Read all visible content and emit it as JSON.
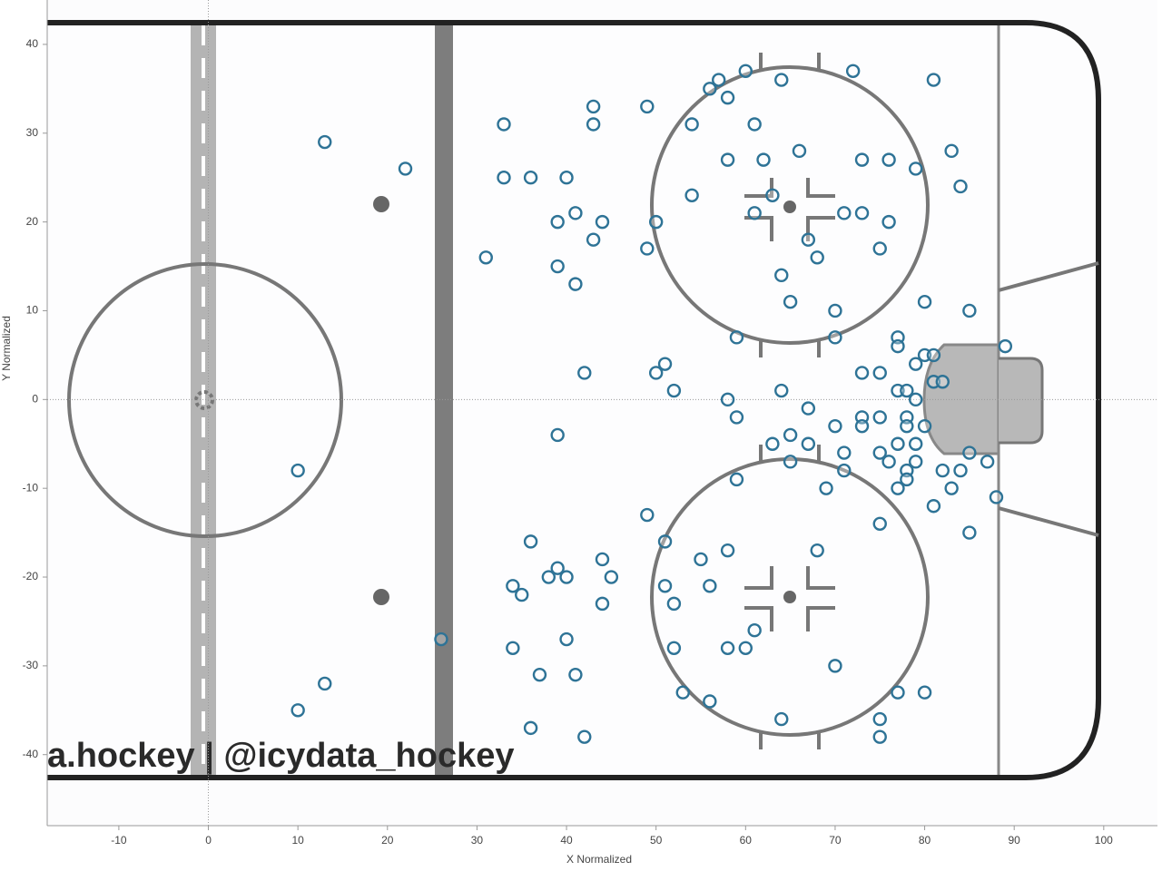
{
  "chart_data": {
    "type": "scatter",
    "xlabel": "X Normalized",
    "ylabel": "Y Normalized",
    "watermark": "a.hockey | @icydata_hockey",
    "color": "#2e7396",
    "xlim": [
      -18,
      106
    ],
    "ylim": [
      -48,
      45
    ],
    "xticks": [
      -10,
      0,
      10,
      20,
      30,
      40,
      50,
      60,
      70,
      80,
      90,
      100
    ],
    "yticks": [
      -40,
      -30,
      -20,
      -10,
      0,
      10,
      20,
      30,
      40
    ],
    "x": [
      13,
      22,
      10,
      26,
      13,
      10,
      31,
      33,
      33,
      36,
      40,
      43,
      43,
      49,
      39,
      41,
      44,
      43,
      39,
      41,
      42,
      39,
      49,
      50,
      54,
      54,
      56,
      57,
      58,
      60,
      64,
      61,
      58,
      62,
      66,
      63,
      61,
      64,
      65,
      67,
      68,
      70,
      72,
      81,
      73,
      76,
      71,
      73,
      76,
      75,
      79,
      83,
      84,
      80,
      85,
      59,
      70,
      77,
      77,
      89,
      80,
      81,
      79,
      51,
      50,
      52,
      73,
      75,
      81,
      82,
      64,
      77,
      78,
      79,
      58,
      59,
      67,
      70,
      73,
      73,
      75,
      78,
      78,
      80,
      63,
      65,
      67,
      65,
      71,
      71,
      75,
      76,
      77,
      79,
      79,
      78,
      78,
      77,
      82,
      84,
      85,
      87,
      83,
      81,
      88,
      85,
      75,
      69,
      59,
      49,
      51,
      36,
      39,
      38,
      40,
      44,
      45,
      44,
      34,
      35,
      51,
      52,
      56,
      55,
      58,
      68,
      61,
      58,
      60,
      52,
      34,
      40,
      37,
      41,
      53,
      56,
      70,
      77,
      80,
      64,
      75,
      75,
      36,
      42
    ],
    "values": [
      29,
      26,
      -8,
      -27,
      -32,
      -35,
      16,
      31,
      25,
      25,
      25,
      33,
      31,
      33,
      20,
      21,
      20,
      18,
      15,
      13,
      3,
      -4,
      17,
      20,
      31,
      23,
      35,
      36,
      34,
      37,
      36,
      31,
      27,
      27,
      28,
      23,
      21,
      14,
      11,
      18,
      16,
      10,
      37,
      36,
      27,
      27,
      21,
      21,
      20,
      17,
      26,
      28,
      24,
      11,
      10,
      7,
      7,
      7,
      6,
      6,
      5,
      5,
      4,
      4,
      3,
      1,
      3,
      3,
      2,
      2,
      1,
      1,
      1,
      0,
      0,
      -2,
      -1,
      -3,
      -2,
      -3,
      -2,
      -2,
      -3,
      -3,
      -5,
      -4,
      -5,
      -7,
      -6,
      -8,
      -6,
      -7,
      -5,
      -5,
      -7,
      -8,
      -9,
      -10,
      -8,
      -8,
      -6,
      -7,
      -10,
      -12,
      -11,
      -15,
      -14,
      -10,
      -9,
      -13,
      -16,
      -16,
      -19,
      -20,
      -20,
      -18,
      -20,
      -23,
      -21,
      -22,
      -21,
      -23,
      -21,
      -18,
      -17,
      -17,
      -26,
      -28,
      -28,
      -28,
      -28,
      -27,
      -31,
      -31,
      -33,
      -34,
      -30,
      -33,
      -33,
      -36,
      -36,
      -38,
      -37,
      -38
    ]
  }
}
